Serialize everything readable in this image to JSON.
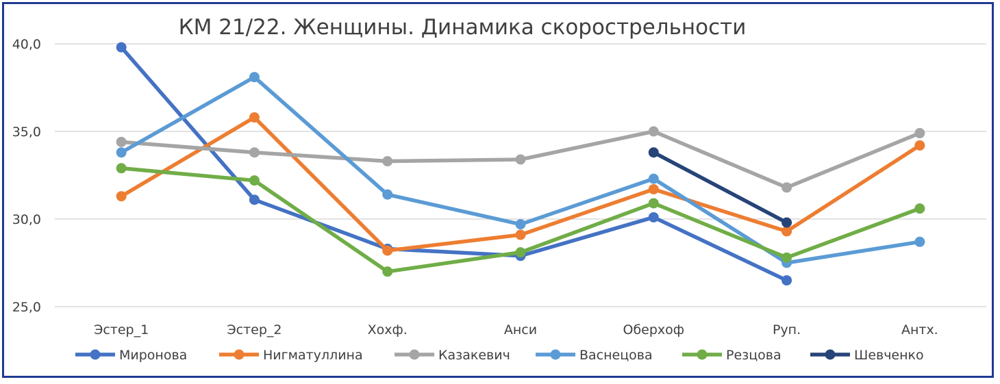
{
  "chart_data": {
    "type": "line",
    "title": "КМ 21/22. Женщины. Динамика скорострельности",
    "categories": [
      "Эстер_1",
      "Эстер_2",
      "Хохф.",
      "Анси",
      "Оберхоф",
      "Руп.",
      "Антх."
    ],
    "ylim": [
      25,
      40
    ],
    "yticks": [
      "25,0",
      "30,0",
      "35,0",
      "40,0"
    ],
    "ytick_values": [
      25,
      30,
      35,
      40
    ],
    "grid": true,
    "legend": "bottom",
    "series": [
      {
        "name": "Миронова",
        "color": "#4472c4",
        "values": [
          39.8,
          31.1,
          28.3,
          27.9,
          30.1,
          26.5,
          null
        ]
      },
      {
        "name": "Нигматуллина",
        "color": "#ed7d31",
        "values": [
          31.3,
          35.8,
          28.2,
          29.1,
          31.7,
          29.3,
          34.2
        ]
      },
      {
        "name": "Казакевич",
        "color": "#a5a5a5",
        "values": [
          34.4,
          33.8,
          33.3,
          33.4,
          35.0,
          31.8,
          34.9
        ]
      },
      {
        "name": "Васнецова",
        "color": "#5b9bd5",
        "values": [
          33.8,
          38.1,
          31.4,
          29.7,
          32.3,
          27.5,
          28.7
        ]
      },
      {
        "name": "Резцова",
        "color": "#70ad47",
        "values": [
          32.9,
          32.2,
          27.0,
          28.1,
          30.9,
          27.8,
          30.6
        ]
      },
      {
        "name": "Шевченко",
        "color": "#264478",
        "values": [
          null,
          null,
          null,
          null,
          33.8,
          29.8,
          null
        ]
      }
    ]
  }
}
